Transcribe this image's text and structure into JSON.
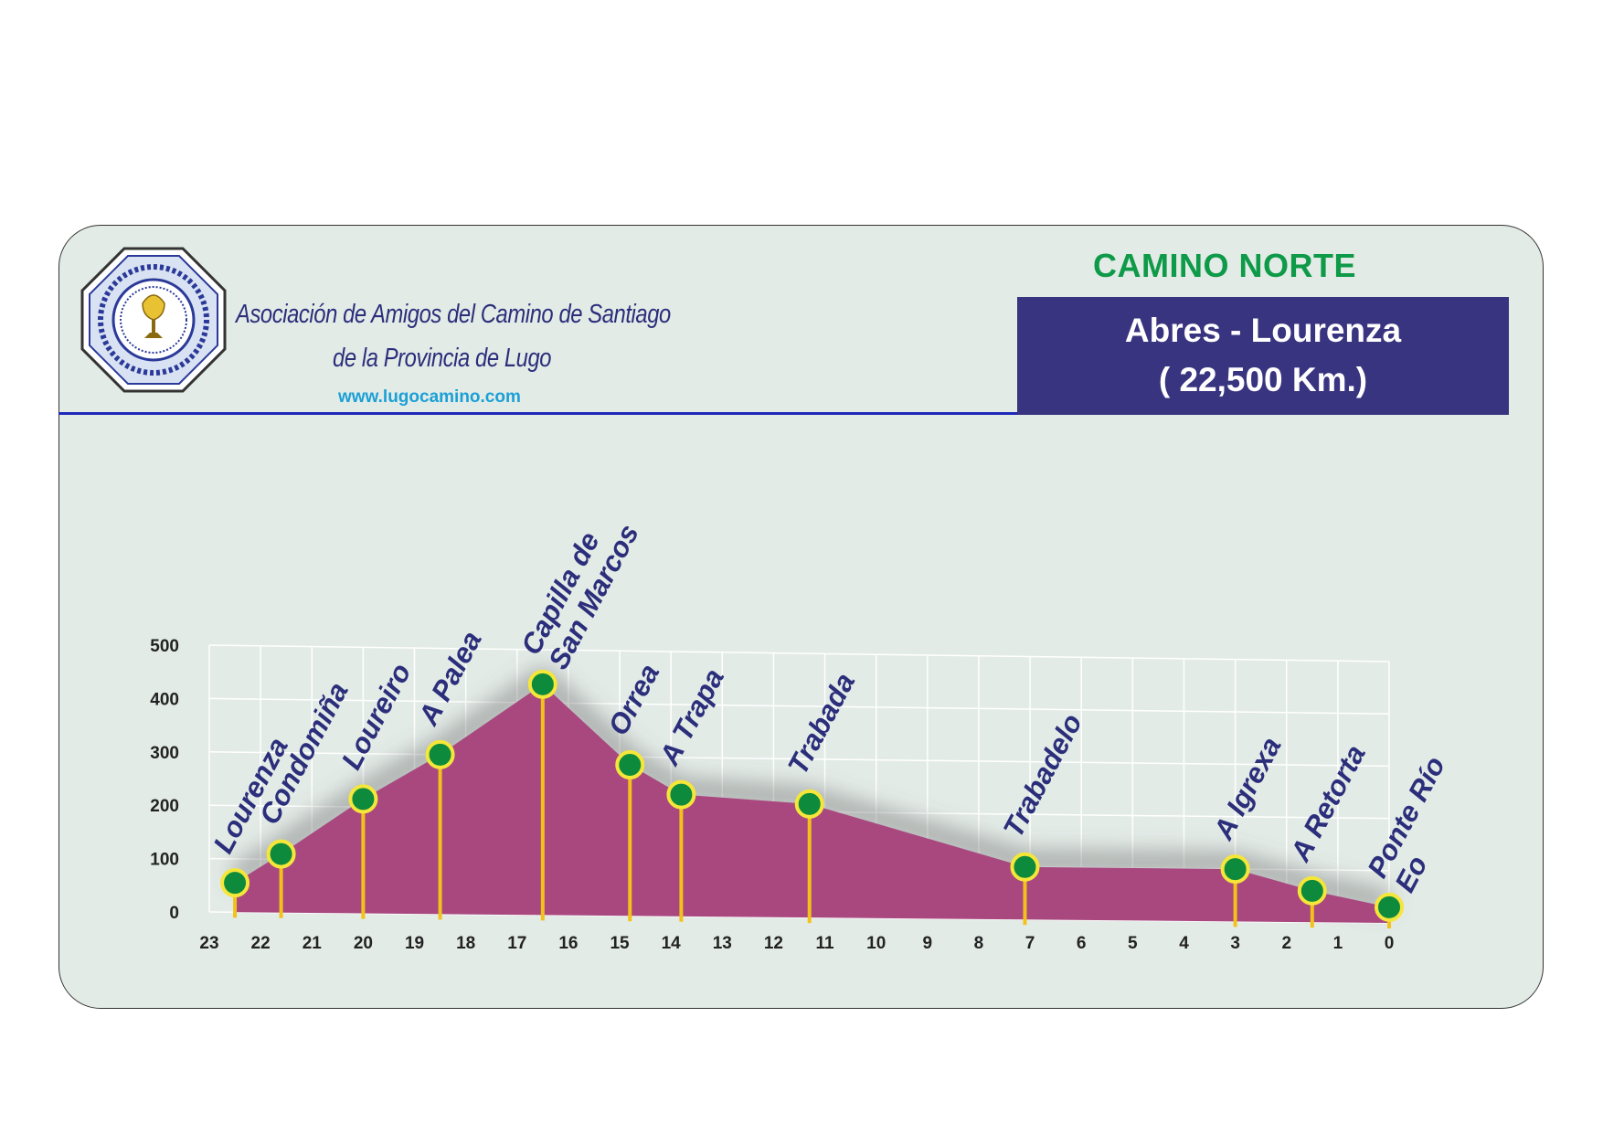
{
  "header": {
    "organization_line1": "Asociación de Amigos del Camino de Santiago",
    "organization_line2": "de la Provincia de Lugo",
    "website": "www.lugocamino.com",
    "route_name": "CAMINO NORTE",
    "stage_title": "Abres - Lourenza",
    "stage_distance": "( 22,500 Km.)"
  },
  "colors": {
    "profile_fill": "#a8487f",
    "marker_fill": "#0e8a3c",
    "marker_ring": "#f5e63a",
    "stem": "#f2c21a",
    "label_text": "#2b2e7a",
    "route_name": "#0e9a48",
    "stage_box": "#39347f"
  },
  "logo": {
    "icon": "association-seal-icon"
  },
  "chart_data": {
    "type": "area",
    "title": "",
    "xlabel": "",
    "ylabel": "",
    "x_reversed": true,
    "xlim": [
      0,
      23
    ],
    "ylim": [
      0,
      500
    ],
    "grid": true,
    "x_ticks": [
      23,
      22,
      21,
      20,
      19,
      18,
      17,
      16,
      15,
      14,
      13,
      12,
      11,
      10,
      9,
      8,
      7,
      6,
      5,
      4,
      3,
      2,
      1,
      0
    ],
    "y_ticks": [
      0,
      100,
      200,
      300,
      400,
      500
    ],
    "points": [
      {
        "name": "Lourenza",
        "km": 22.5,
        "altitude": 55
      },
      {
        "name": "Condomiña",
        "km": 21.6,
        "altitude": 110
      },
      {
        "name": "Loureiro",
        "km": 20.0,
        "altitude": 215
      },
      {
        "name": "A Palea",
        "km": 18.5,
        "altitude": 300
      },
      {
        "name": "Capilla de San Marcos",
        "km": 16.5,
        "altitude": 435
      },
      {
        "name": "Orrea",
        "km": 14.8,
        "altitude": 285
      },
      {
        "name": "A Trapa",
        "km": 13.8,
        "altitude": 230
      },
      {
        "name": "Trabada",
        "km": 11.3,
        "altitude": 215
      },
      {
        "name": "Trabadelo",
        "km": 7.1,
        "altitude": 100
      },
      {
        "name": "A Igrexa",
        "km": 3.0,
        "altitude": 100
      },
      {
        "name": "A Retorta",
        "km": 1.5,
        "altitude": 60
      },
      {
        "name": "Ponte Río Eo",
        "km": 0.0,
        "altitude": 30
      }
    ]
  }
}
